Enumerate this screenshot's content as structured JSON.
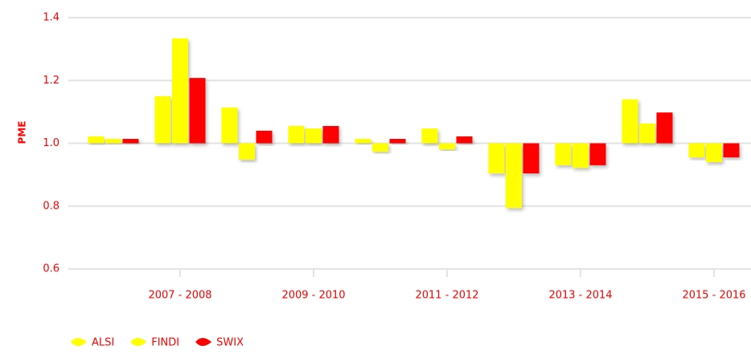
{
  "chart_data": {
    "type": "bar",
    "categories": [
      null,
      "2007 - 2008",
      null,
      "2009 - 2010",
      null,
      "2011 - 2012",
      null,
      "2013 - 2014",
      null,
      "2015 - 2016"
    ],
    "series": [
      {
        "name": "ALSI",
        "color": "#ffff00",
        "values": [
          1.022,
          1.15,
          1.114,
          1.055,
          1.014,
          1.047,
          0.904,
          0.93,
          1.14,
          0.955
        ]
      },
      {
        "name": "FINDI",
        "color": "#ffff00",
        "values": [
          1.014,
          1.334,
          0.948,
          1.047,
          0.973,
          0.98,
          0.794,
          0.922,
          1.063,
          0.94
        ]
      },
      {
        "name": "SWIX",
        "color": "#ff0000",
        "values": [
          1.014,
          1.208,
          1.04,
          1.055,
          1.014,
          1.022,
          0.904,
          0.93,
          1.098,
          0.955
        ]
      }
    ],
    "ylabel": "PME",
    "ylim": [
      0.6,
      1.4
    ],
    "yticks": [
      {
        "value": 0.6,
        "label": "0.6"
      },
      {
        "value": 0.8,
        "label": "0.8"
      },
      {
        "value": 1.0,
        "label": "1.0"
      },
      {
        "value": 1.2,
        "label": "1.2"
      },
      {
        "value": 1.4,
        "label": "1.4"
      }
    ],
    "baseline": 1,
    "grid": true,
    "legend": "bottom-left"
  }
}
